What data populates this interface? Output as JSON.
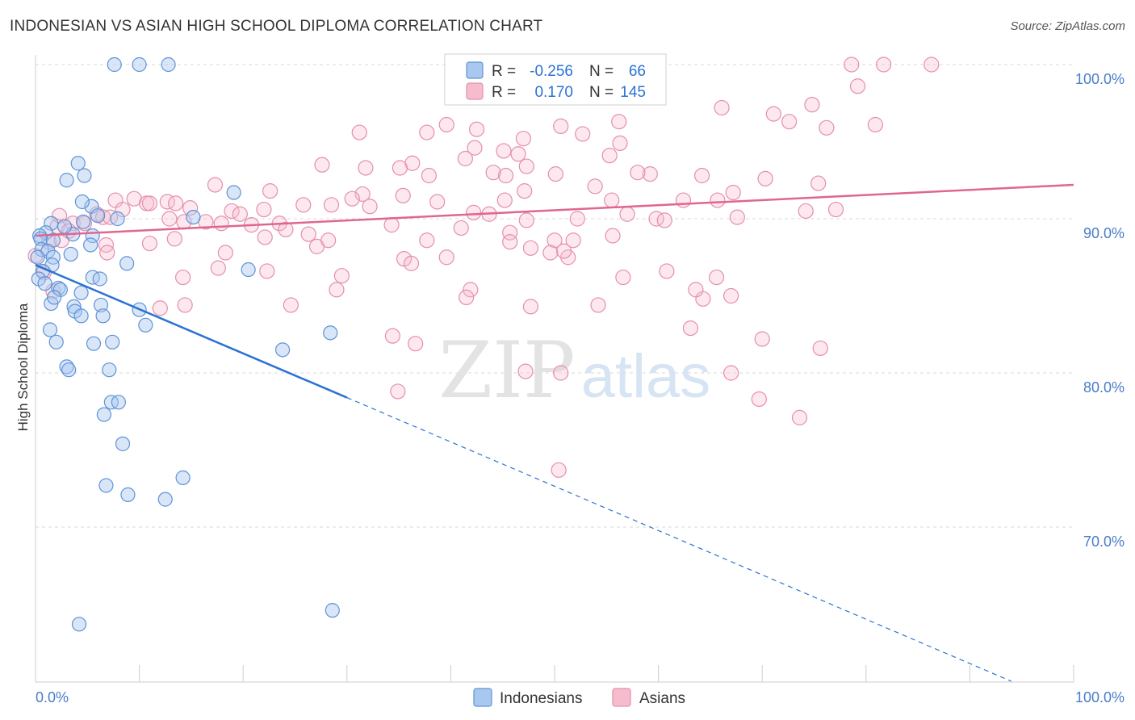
{
  "title": "INDONESIAN VS ASIAN HIGH SCHOOL DIPLOMA CORRELATION CHART",
  "source": "Source: ZipAtlas.com",
  "watermark": {
    "zip": "ZIP",
    "atlas": "atlas"
  },
  "colors": {
    "indonesians_fill": "#a9c8ef",
    "indonesians_stroke": "#5f93d6",
    "indonesians_line": "#2b72d4",
    "asians_fill": "#f6bccd",
    "asians_stroke": "#e58fab",
    "asians_line": "#e0668f",
    "tick_label": "#4a7cc9",
    "grid": "#d9d9d9"
  },
  "legend_box": {
    "rows": [
      {
        "r_label": "R =",
        "r_value": "-0.256",
        "n_label": "N =",
        "n_value": "66"
      },
      {
        "r_label": "R =",
        "r_value": "0.170",
        "n_label": "N =",
        "n_value": "145"
      }
    ]
  },
  "bottom_legend": [
    "Indonesians",
    "Asians"
  ],
  "chart_data": {
    "type": "scatter",
    "title": "INDONESIAN VS ASIAN HIGH SCHOOL DIPLOMA CORRELATION CHART",
    "xlabel": "",
    "ylabel": "High School Diploma",
    "xlim": [
      0,
      100
    ],
    "ylim": [
      60,
      100
    ],
    "x_tick_labels": [
      "0.0%",
      "100.0%"
    ],
    "y_ticks": [
      100,
      90,
      80,
      70
    ],
    "y_tick_labels": [
      "100.0%",
      "90.0%",
      "80.0%",
      "70.0%"
    ],
    "grid": true,
    "legend_position": "top-center",
    "series": [
      {
        "name": "Indonesians",
        "r": -0.256,
        "n": 66,
        "trend": {
          "x": [
            0,
            30
          ],
          "y": [
            87.0,
            78.4
          ],
          "dashed_x": [
            30,
            94
          ],
          "dashed_y": [
            78.4,
            60.0
          ]
        },
        "points": [
          [
            7.6,
            100
          ],
          [
            10.0,
            100
          ],
          [
            12.8,
            100
          ],
          [
            4.1,
            93.6
          ],
          [
            3.0,
            92.5
          ],
          [
            4.7,
            92.8
          ],
          [
            1.5,
            89.7
          ],
          [
            1.0,
            89.1
          ],
          [
            0.4,
            88.9
          ],
          [
            0.5,
            88.7
          ],
          [
            1.7,
            88.6
          ],
          [
            3.6,
            89.0
          ],
          [
            0.6,
            88.0
          ],
          [
            1.2,
            87.9
          ],
          [
            1.7,
            87.5
          ],
          [
            3.4,
            87.7
          ],
          [
            1.6,
            87.0
          ],
          [
            0.7,
            86.6
          ],
          [
            0.3,
            86.1
          ],
          [
            0.9,
            85.8
          ],
          [
            2.2,
            85.5
          ],
          [
            2.4,
            85.4
          ],
          [
            4.4,
            85.2
          ],
          [
            4.6,
            89.8
          ],
          [
            5.4,
            90.8
          ],
          [
            6.0,
            90.2
          ],
          [
            7.9,
            90.0
          ],
          [
            4.5,
            91.1
          ],
          [
            5.5,
            88.9
          ],
          [
            5.3,
            88.3
          ],
          [
            8.8,
            87.1
          ],
          [
            5.5,
            86.2
          ],
          [
            6.2,
            86.1
          ],
          [
            1.5,
            84.5
          ],
          [
            1.8,
            84.9
          ],
          [
            3.7,
            84.3
          ],
          [
            3.8,
            84.0
          ],
          [
            4.4,
            83.7
          ],
          [
            6.3,
            84.4
          ],
          [
            6.5,
            83.7
          ],
          [
            10.0,
            84.1
          ],
          [
            1.4,
            82.8
          ],
          [
            2.0,
            82.0
          ],
          [
            5.6,
            81.9
          ],
          [
            7.4,
            82.0
          ],
          [
            10.6,
            83.1
          ],
          [
            3.0,
            80.4
          ],
          [
            3.2,
            80.2
          ],
          [
            7.1,
            80.2
          ],
          [
            7.3,
            78.1
          ],
          [
            8.0,
            78.1
          ],
          [
            6.6,
            77.3
          ],
          [
            8.4,
            75.4
          ],
          [
            6.8,
            72.7
          ],
          [
            8.9,
            72.1
          ],
          [
            12.5,
            71.8
          ],
          [
            14.2,
            73.2
          ],
          [
            15.2,
            90.1
          ],
          [
            19.1,
            91.7
          ],
          [
            20.5,
            86.7
          ],
          [
            23.8,
            81.5
          ],
          [
            28.4,
            82.6
          ],
          [
            4.2,
            63.7
          ],
          [
            28.6,
            64.6
          ],
          [
            0.2,
            87.5
          ],
          [
            2.8,
            89.5
          ]
        ]
      },
      {
        "name": "Asians",
        "r": 0.17,
        "n": 145,
        "trend": {
          "x": [
            0,
            100
          ],
          "y": [
            88.9,
            92.2
          ]
        },
        "points": [
          [
            78.6,
            100
          ],
          [
            81.7,
            100
          ],
          [
            86.3,
            100
          ],
          [
            79.2,
            98.6
          ],
          [
            56.2,
            96.3
          ],
          [
            66.1,
            97.2
          ],
          [
            74.8,
            97.4
          ],
          [
            71.1,
            96.8
          ],
          [
            72.6,
            96.3
          ],
          [
            80.9,
            96.1
          ],
          [
            76.2,
            95.9
          ],
          [
            42.5,
            95.8
          ],
          [
            39.6,
            96.1
          ],
          [
            50.6,
            96.0
          ],
          [
            47.0,
            95.2
          ],
          [
            52.7,
            95.5
          ],
          [
            37.7,
            95.6
          ],
          [
            31.2,
            95.6
          ],
          [
            56.3,
            94.9
          ],
          [
            42.3,
            94.6
          ],
          [
            46.5,
            94.2
          ],
          [
            45.1,
            94.4
          ],
          [
            55.3,
            94.1
          ],
          [
            41.4,
            93.9
          ],
          [
            31.8,
            93.3
          ],
          [
            36.3,
            93.6
          ],
          [
            27.6,
            93.5
          ],
          [
            47.3,
            93.4
          ],
          [
            44.1,
            93.0
          ],
          [
            50.1,
            92.9
          ],
          [
            45.3,
            92.8
          ],
          [
            35.1,
            93.3
          ],
          [
            37.9,
            92.8
          ],
          [
            70.3,
            92.6
          ],
          [
            59.2,
            92.9
          ],
          [
            64.2,
            92.8
          ],
          [
            58.0,
            93.0
          ],
          [
            75.4,
            92.3
          ],
          [
            17.3,
            92.2
          ],
          [
            22.6,
            91.8
          ],
          [
            31.5,
            91.6
          ],
          [
            35.4,
            91.5
          ],
          [
            30.5,
            91.3
          ],
          [
            32.2,
            90.8
          ],
          [
            38.7,
            91.1
          ],
          [
            47.1,
            91.8
          ],
          [
            45.2,
            91.2
          ],
          [
            53.9,
            92.1
          ],
          [
            55.5,
            91.2
          ],
          [
            62.4,
            91.2
          ],
          [
            65.7,
            91.2
          ],
          [
            67.2,
            91.7
          ],
          [
            9.5,
            91.3
          ],
          [
            12.7,
            91.1
          ],
          [
            10.7,
            91.0
          ],
          [
            7.7,
            91.2
          ],
          [
            8.4,
            90.6
          ],
          [
            11.0,
            91.0
          ],
          [
            13.5,
            91.0
          ],
          [
            14.9,
            90.7
          ],
          [
            18.9,
            90.5
          ],
          [
            22.0,
            90.6
          ],
          [
            25.8,
            90.9
          ],
          [
            28.5,
            90.9
          ],
          [
            19.7,
            90.3
          ],
          [
            42.2,
            90.4
          ],
          [
            43.7,
            90.3
          ],
          [
            47.3,
            89.9
          ],
          [
            52.2,
            90.0
          ],
          [
            57.0,
            90.3
          ],
          [
            59.8,
            90.0
          ],
          [
            60.6,
            89.9
          ],
          [
            67.6,
            90.1
          ],
          [
            74.2,
            90.5
          ],
          [
            77.1,
            90.6
          ],
          [
            2.3,
            90.2
          ],
          [
            3.6,
            89.7
          ],
          [
            4.7,
            89.7
          ],
          [
            5.9,
            90.3
          ],
          [
            6.5,
            90.1
          ],
          [
            2.1,
            89.5
          ],
          [
            3.2,
            89.2
          ],
          [
            12.9,
            90.0
          ],
          [
            14.3,
            89.8
          ],
          [
            16.4,
            89.8
          ],
          [
            17.9,
            89.7
          ],
          [
            20.8,
            89.6
          ],
          [
            23.5,
            89.7
          ],
          [
            24.1,
            89.3
          ],
          [
            26.3,
            89.0
          ],
          [
            34.3,
            89.6
          ],
          [
            41.0,
            89.4
          ],
          [
            45.7,
            89.1
          ],
          [
            55.6,
            88.9
          ],
          [
            50.0,
            88.6
          ],
          [
            51.8,
            88.6
          ],
          [
            1.3,
            88.5
          ],
          [
            2.5,
            88.6
          ],
          [
            6.8,
            88.3
          ],
          [
            13.4,
            88.7
          ],
          [
            22.1,
            88.8
          ],
          [
            27.1,
            88.2
          ],
          [
            28.2,
            88.6
          ],
          [
            37.7,
            88.6
          ],
          [
            45.7,
            88.5
          ],
          [
            47.7,
            88.1
          ],
          [
            49.6,
            87.8
          ],
          [
            51.3,
            87.5
          ],
          [
            35.5,
            87.4
          ],
          [
            39.6,
            87.5
          ],
          [
            6.9,
            87.8
          ],
          [
            18.3,
            87.8
          ],
          [
            11.0,
            88.4
          ],
          [
            17.6,
            86.8
          ],
          [
            22.3,
            86.6
          ],
          [
            29.5,
            86.3
          ],
          [
            36.2,
            87.1
          ],
          [
            50.9,
            87.9
          ],
          [
            56.6,
            86.2
          ],
          [
            60.8,
            86.6
          ],
          [
            65.6,
            86.2
          ],
          [
            1.7,
            85.3
          ],
          [
            0.8,
            86.5
          ],
          [
            14.2,
            86.2
          ],
          [
            29.0,
            85.4
          ],
          [
            41.9,
            85.4
          ],
          [
            41.5,
            84.9
          ],
          [
            54.2,
            84.4
          ],
          [
            64.3,
            84.8
          ],
          [
            63.6,
            85.4
          ],
          [
            67.0,
            85.0
          ],
          [
            12.0,
            84.2
          ],
          [
            14.4,
            84.4
          ],
          [
            24.6,
            84.4
          ],
          [
            34.4,
            82.4
          ],
          [
            47.7,
            84.3
          ],
          [
            63.1,
            82.9
          ],
          [
            70.0,
            82.2
          ],
          [
            75.6,
            81.6
          ],
          [
            36.6,
            81.9
          ],
          [
            47.2,
            80.1
          ],
          [
            50.6,
            80.0
          ],
          [
            67.0,
            80.0
          ],
          [
            34.9,
            78.8
          ],
          [
            69.7,
            78.3
          ],
          [
            73.6,
            77.1
          ],
          [
            50.4,
            73.7
          ],
          [
            0.0,
            87.6
          ],
          [
            7.2,
            90.1
          ]
        ]
      }
    ]
  }
}
